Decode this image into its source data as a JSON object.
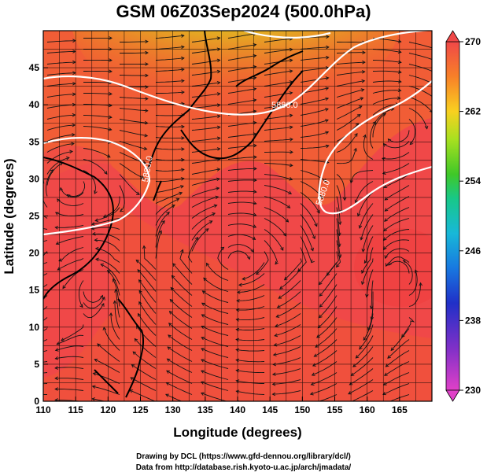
{
  "title": "GSM 06Z03Sep2024 (500.0hPa)",
  "chart_data": {
    "type": "heatmap",
    "title": "GSM 06Z03Sep2024 (500.0hPa)",
    "xlabel": "Longitude (degrees)",
    "ylabel": "Latitude  (degrees)",
    "xlim": [
      110,
      170
    ],
    "ylim": [
      0,
      50
    ],
    "x_ticks": [
      "110",
      "115",
      "120",
      "125",
      "130",
      "135",
      "140",
      "145",
      "150",
      "155",
      "160",
      "165"
    ],
    "y_ticks": [
      "0",
      "5",
      "10",
      "15",
      "20",
      "25",
      "30",
      "35",
      "40",
      "45"
    ],
    "colorbar": {
      "ticks": [
        "230",
        "238",
        "246",
        "254",
        "262",
        "270"
      ],
      "range": [
        230,
        270
      ],
      "colors": [
        "#e040c8",
        "#5a30c0",
        "#1a40e0",
        "#18a8e0",
        "#18c888",
        "#58d020",
        "#c8e020",
        "#f8c020",
        "#f87020",
        "#f04040"
      ]
    },
    "contour_labels": [
      "5880.0",
      "5880.0",
      "5880.0"
    ],
    "overlay": "streamlines",
    "colors": {
      "warm": "#f04848",
      "orange": "#f07820",
      "green": "#60c020",
      "contour": "#ffffff",
      "coast": "#000000"
    }
  },
  "credits": {
    "line1": "Drawing by DCL (https://www.gfd-dennou.org/library/dcl/)",
    "line2": "Data from http://database.rish.kyoto-u.ac.jp/arch/jmadata/"
  }
}
